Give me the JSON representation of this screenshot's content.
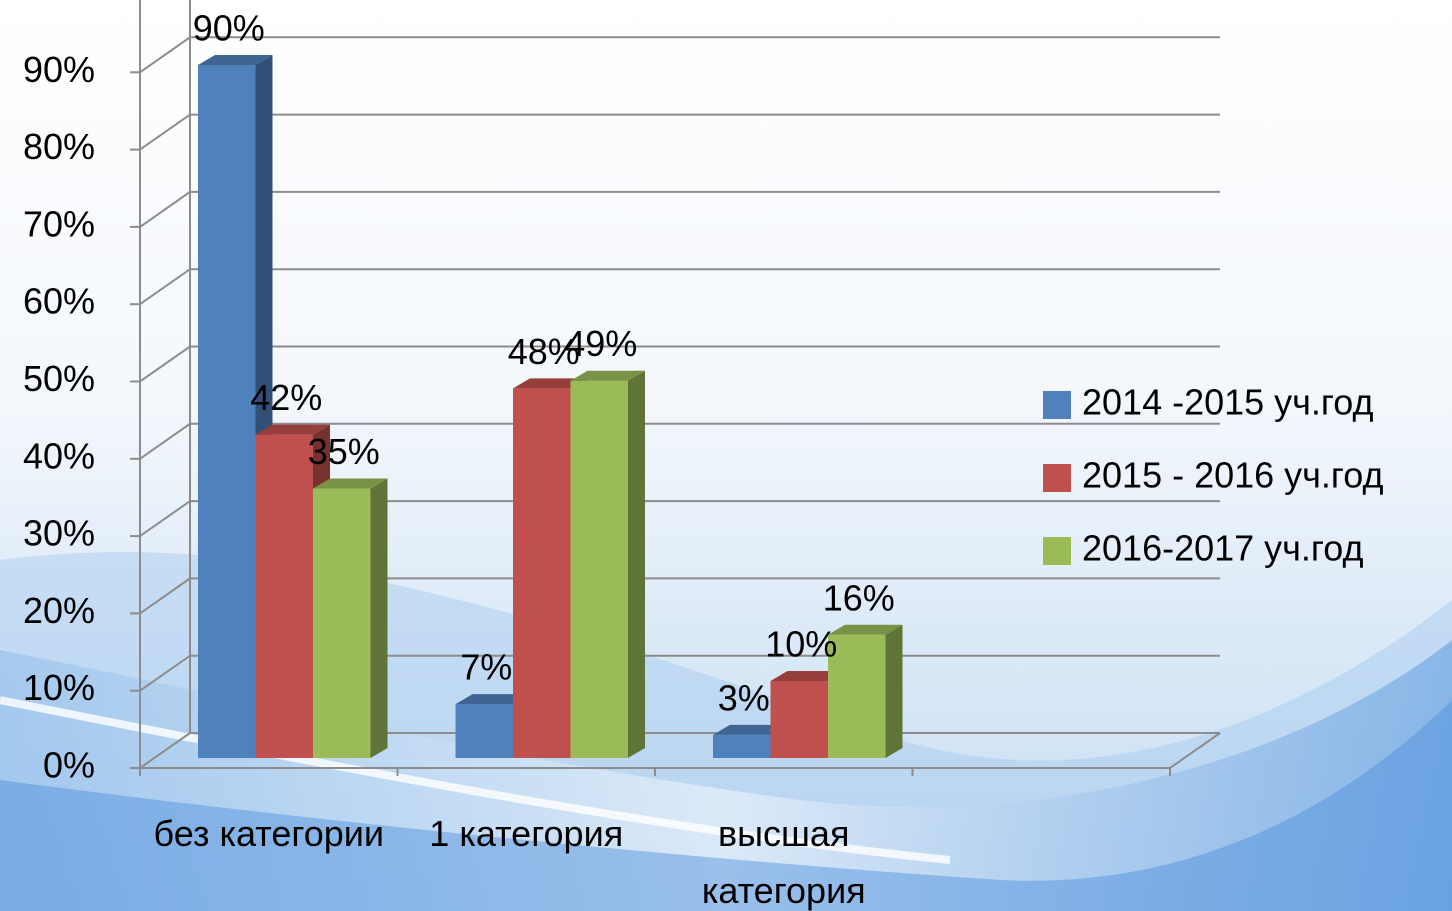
{
  "chart_data": {
    "type": "bar3d",
    "categories": [
      "без категории",
      "1 категория",
      "высшая категория"
    ],
    "series": [
      {
        "name": "2014 -2015 уч.год",
        "color": "#4f81bd",
        "values": [
          90,
          7,
          3
        ],
        "value_labels": [
          "90%",
          "7%",
          "3%"
        ]
      },
      {
        "name": "2015 - 2016 уч.год",
        "color": "#c0504d",
        "values": [
          42,
          48,
          10
        ],
        "value_labels": [
          "42%",
          "48%",
          "10%"
        ]
      },
      {
        "name": "2016-2017 уч.год",
        "color": "#9bbb59",
        "values": [
          35,
          49,
          16
        ],
        "value_labels": [
          "35%",
          "49%",
          "16%"
        ]
      }
    ],
    "ylim": [
      0,
      100
    ],
    "yticks": [
      {
        "value": 0,
        "label": "0%"
      },
      {
        "value": 10,
        "label": "10%"
      },
      {
        "value": 20,
        "label": "20%"
      },
      {
        "value": 30,
        "label": "30%"
      },
      {
        "value": 40,
        "label": "40%"
      },
      {
        "value": 50,
        "label": "50%"
      },
      {
        "value": 60,
        "label": "60%"
      },
      {
        "value": 70,
        "label": "70%"
      },
      {
        "value": 80,
        "label": "80%"
      },
      {
        "value": 90,
        "label": "90%"
      }
    ],
    "grid": true,
    "legend": "right"
  }
}
